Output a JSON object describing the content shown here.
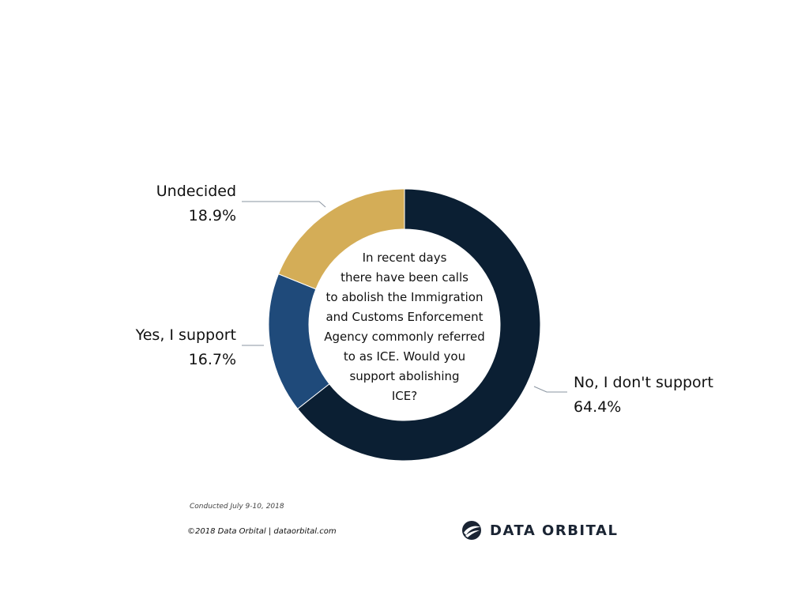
{
  "chart_data": {
    "type": "pie",
    "donut": true,
    "categories": [
      "No, I don't support",
      "Yes, I support",
      "Undecided"
    ],
    "values": [
      64.4,
      16.7,
      18.9
    ],
    "value_labels": [
      "64.4%",
      "16.7%",
      "18.9%"
    ],
    "colors": [
      "#0b1f33",
      "#1f4a7a",
      "#d4ad57"
    ],
    "center_text": [
      "In recent days",
      "there have been calls",
      "to abolish the Immigration",
      "and Customs Enforcement",
      "Agency commonly referred",
      "to as ICE. Would you",
      "support abolishing",
      "ICE?"
    ],
    "legend": "none"
  },
  "footer": {
    "conducted": "Conducted July 9-10, 2018",
    "copyright": "©2018 Data Orbital | dataorbital.com"
  },
  "logo": {
    "text": "DATA ORBITAL",
    "icon": "globe-icon"
  }
}
